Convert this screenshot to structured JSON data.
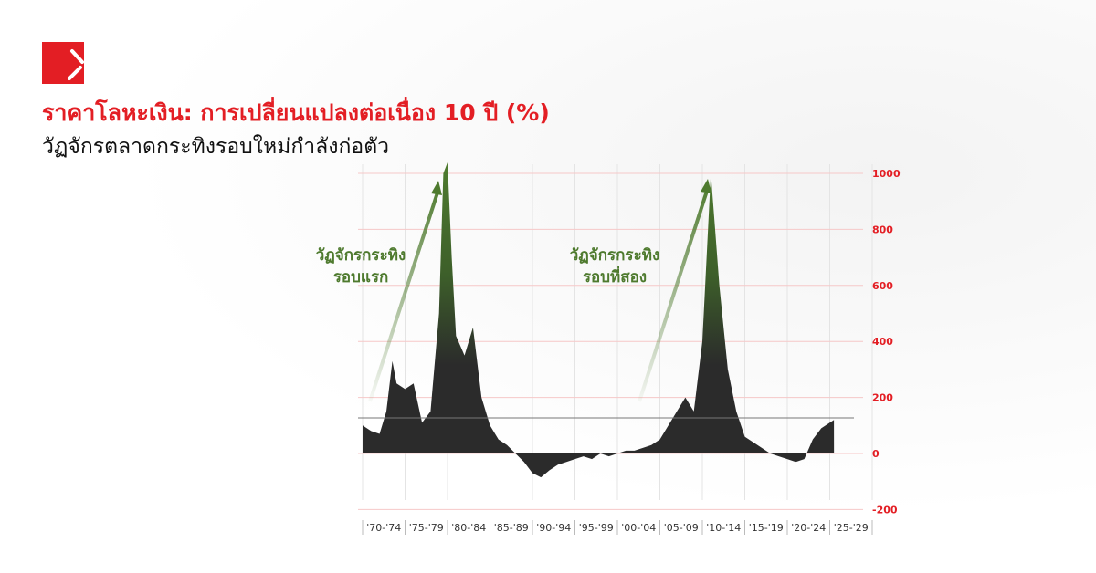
{
  "title": "ราคาโลหะเงิน: การเปลี่ยนแปลงต่อเนื่อง 10 ปี (%)",
  "subtitle": "วัฏจักรตลาดกระทิงรอบใหม่กำลังก่อตัว",
  "annotations": [
    {
      "line1": "วัฏจักรกระทิง",
      "line2": "รอบแรก"
    },
    {
      "line1": "วัฏจักรกระทิง",
      "line2": "รอบที่สอง"
    }
  ],
  "colors": {
    "brand": "#e31e24",
    "area": "#2b2b2b",
    "highlight": "#4e7a2e",
    "axis_labels": "#e31e24"
  },
  "chart_data": {
    "type": "area",
    "title": "ราคาโลหะเงิน: การเปลี่ยนแปลงต่อเนื่อง 10 ปี (%)",
    "xlim": [
      1970,
      2030
    ],
    "ylim": [
      -200,
      1000
    ],
    "yticks": [
      -200,
      0,
      200,
      400,
      600,
      800,
      1000
    ],
    "xtick_labels": [
      "'70-'74",
      "'75-'79",
      "'80-'84",
      "'85-'89",
      "'90-'94",
      "'95-'99",
      "'00-'04",
      "'05-'09",
      "'10-'14",
      "'15-'19",
      "'20-'24",
      "'25-'29"
    ],
    "reference_line": 127,
    "grid": true,
    "x": [
      1970,
      1971,
      1972,
      1972.8,
      1973.5,
      1974,
      1975,
      1976,
      1977,
      1978,
      1979,
      1979.5,
      1980,
      1980.5,
      1981,
      1982,
      1983,
      1984,
      1985,
      1986,
      1987,
      1988,
      1989,
      1990,
      1991,
      1992,
      1993,
      1994,
      1995,
      1996,
      1997,
      1998,
      1999,
      2000,
      2001,
      2002,
      2003,
      2004,
      2005,
      2006,
      2007,
      2008,
      2009,
      2010,
      2011,
      2011.5,
      2012,
      2013,
      2014,
      2015,
      2016,
      2017,
      2018,
      2019,
      2020,
      2021,
      2022,
      2023,
      2024,
      2025.5
    ],
    "y": [
      100,
      80,
      70,
      150,
      330,
      250,
      230,
      250,
      110,
      150,
      500,
      1000,
      1100,
      700,
      420,
      350,
      450,
      200,
      100,
      50,
      30,
      0,
      -30,
      -70,
      -85,
      -60,
      -40,
      -30,
      -20,
      -10,
      -20,
      0,
      -10,
      0,
      10,
      10,
      20,
      30,
      50,
      100,
      150,
      200,
      150,
      400,
      1000,
      800,
      600,
      300,
      150,
      60,
      40,
      20,
      0,
      -10,
      -20,
      -30,
      -20,
      50,
      90,
      120
    ]
  }
}
